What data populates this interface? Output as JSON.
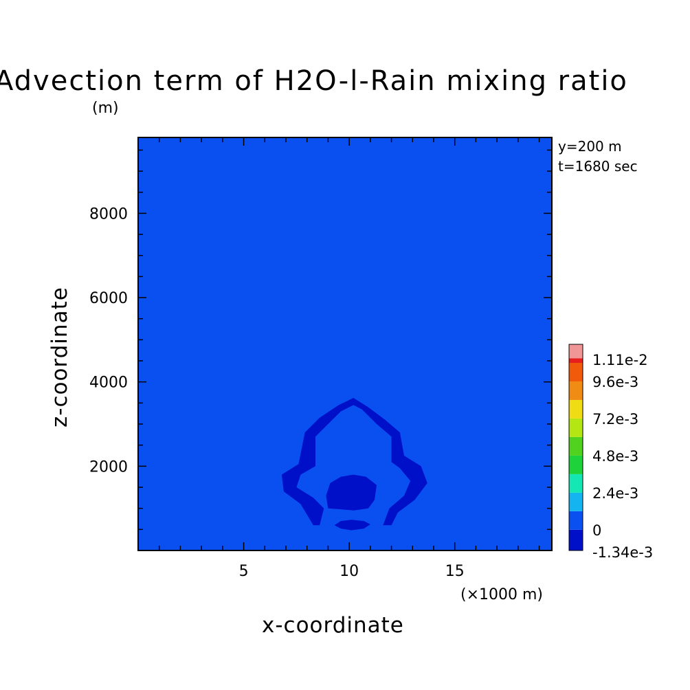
{
  "chart_data": {
    "type": "heatmap",
    "title": "Advection term of H2O-l-Rain mixing ratio",
    "z_unit": "(m)",
    "xlabel": "x-coordinate",
    "ylabel": "z-coordinate",
    "x_unit": "(×1000 m)",
    "info": [
      "y=200 m",
      "t=1680 sec"
    ],
    "xlim": [
      0,
      19.6
    ],
    "ylim": [
      0,
      9800
    ],
    "x_ticks": [
      5,
      10,
      15
    ],
    "y_ticks": [
      2000,
      4000,
      6000,
      8000
    ],
    "x_tick_labels": [
      "5",
      "10",
      "15"
    ],
    "y_tick_labels": [
      "2000",
      "4000",
      "6000",
      "8000"
    ],
    "background_level_color": "#0a50f0",
    "negative_color": "#0010c8",
    "legend_labels": [
      "1.11e-2",
      "9.6e-3",
      "7.2e-3",
      "4.8e-3",
      "2.4e-3",
      "0",
      "-1.34e-3"
    ],
    "levels": [
      {
        "min": -0.00134,
        "max": 0,
        "color": "#0010c8"
      },
      {
        "min": 0,
        "max": 0.0012,
        "color": "#0a50f0"
      },
      {
        "min": 0.0012,
        "max": 0.0024,
        "color": "#14b4f0"
      },
      {
        "min": 0.0024,
        "max": 0.0036,
        "color": "#14e6b4"
      },
      {
        "min": 0.0036,
        "max": 0.0048,
        "color": "#1ed23c"
      },
      {
        "min": 0.0048,
        "max": 0.006,
        "color": "#50d21e"
      },
      {
        "min": 0.006,
        "max": 0.0072,
        "color": "#b4e614"
      },
      {
        "min": 0.0072,
        "max": 0.0084,
        "color": "#f0dc14"
      },
      {
        "min": 0.0084,
        "max": 0.0096,
        "color": "#f08c14"
      },
      {
        "min": 0.0096,
        "max": 0.0108,
        "color": "#f05a0a"
      },
      {
        "min": 0.0108,
        "max": 0.0111,
        "color": "#e61e1e"
      },
      {
        "min": 0.0111,
        "max": 0.012,
        "color": "#f09696"
      }
    ],
    "negative_regions": [
      {
        "name": "outer-arch",
        "points": [
          [
            8.3,
            600
          ],
          [
            7.7,
            1100
          ],
          [
            6.9,
            1400
          ],
          [
            6.8,
            1800
          ],
          [
            7.6,
            2050
          ],
          [
            7.9,
            2800
          ],
          [
            8.6,
            3150
          ],
          [
            9.5,
            3450
          ],
          [
            10.2,
            3620
          ],
          [
            10.9,
            3400
          ],
          [
            11.7,
            3100
          ],
          [
            12.4,
            2800
          ],
          [
            12.6,
            2250
          ],
          [
            13.4,
            2000
          ],
          [
            13.7,
            1600
          ],
          [
            13.1,
            1200
          ],
          [
            12.3,
            900
          ],
          [
            12.0,
            600
          ],
          [
            11.6,
            600
          ],
          [
            11.9,
            1000
          ],
          [
            12.6,
            1300
          ],
          [
            12.9,
            1650
          ],
          [
            12.4,
            1950
          ],
          [
            12.0,
            2100
          ],
          [
            12.0,
            2700
          ],
          [
            11.3,
            3000
          ],
          [
            10.6,
            3350
          ],
          [
            10.2,
            3450
          ],
          [
            9.6,
            3300
          ],
          [
            9.0,
            3000
          ],
          [
            8.4,
            2700
          ],
          [
            8.4,
            2000
          ],
          [
            7.7,
            1800
          ],
          [
            7.5,
            1500
          ],
          [
            8.3,
            1250
          ],
          [
            8.8,
            1000
          ],
          [
            8.6,
            600
          ]
        ]
      },
      {
        "name": "core-upper",
        "points": [
          [
            9.0,
            1000
          ],
          [
            8.9,
            1300
          ],
          [
            9.1,
            1600
          ],
          [
            9.6,
            1750
          ],
          [
            10.2,
            1800
          ],
          [
            10.8,
            1750
          ],
          [
            11.3,
            1550
          ],
          [
            11.2,
            1200
          ],
          [
            10.9,
            1000
          ],
          [
            10.2,
            950
          ],
          [
            9.5,
            980
          ]
        ]
      },
      {
        "name": "core-lower",
        "points": [
          [
            9.3,
            600
          ],
          [
            9.6,
            700
          ],
          [
            10.1,
            730
          ],
          [
            10.7,
            700
          ],
          [
            11.0,
            620
          ],
          [
            10.7,
            520
          ],
          [
            10.1,
            480
          ],
          [
            9.6,
            520
          ]
        ]
      }
    ]
  }
}
